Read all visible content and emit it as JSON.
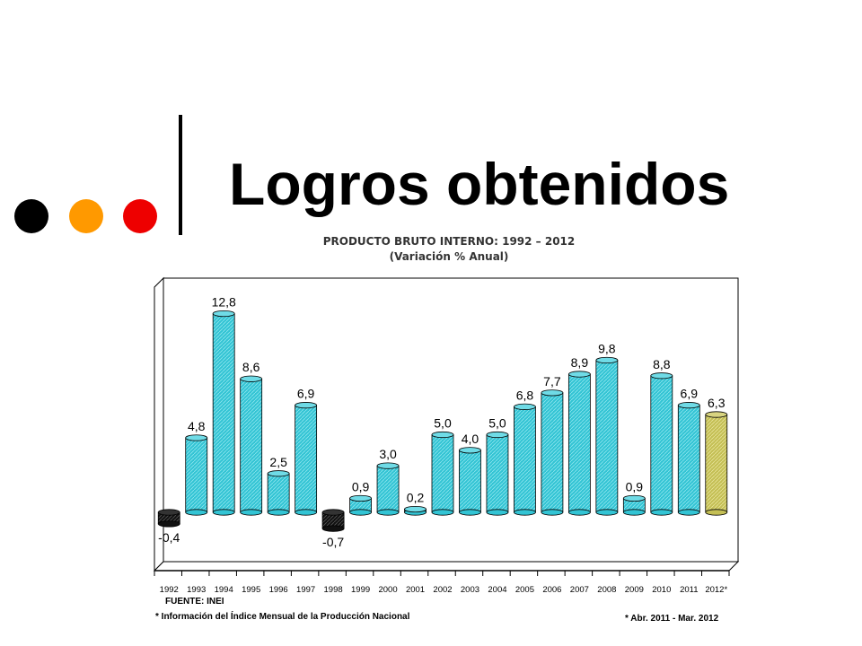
{
  "slide": {
    "title": "Logros obtenidos",
    "bullet_colors": [
      "#000000",
      "#ff9900",
      "#ee0000"
    ]
  },
  "chart_data": {
    "type": "bar",
    "title": "PRODUCTO BRUTO INTERNO: 1992 – 2012",
    "subtitle": "(Variación % Anual)",
    "categories": [
      "1992",
      "1993",
      "1994",
      "1995",
      "1996",
      "1997",
      "1998",
      "1999",
      "2000",
      "2001",
      "2002",
      "2003",
      "2004",
      "2005",
      "2006",
      "2007",
      "2008",
      "2009",
      "2010",
      "2011",
      "2012*"
    ],
    "values": [
      -0.4,
      4.8,
      12.8,
      8.6,
      2.5,
      6.9,
      -0.7,
      0.9,
      3.0,
      0.2,
      5.0,
      4.0,
      5.0,
      6.8,
      7.7,
      8.9,
      9.8,
      0.9,
      8.8,
      6.9,
      6.3
    ],
    "value_labels": [
      "-0,4",
      "4,8",
      "12,8",
      "8,6",
      "2,5",
      "6,9",
      "-0,7",
      "0,9",
      "3,0",
      "0,2",
      "5,0",
      "4,0",
      "5,0",
      "6,8",
      "7,7",
      "8,9",
      "9,8",
      "0,9",
      "8,8",
      "6,9",
      "6,3"
    ],
    "xlabel": "",
    "ylabel": "",
    "grid": false,
    "legend": "none",
    "colors": {
      "positive": "#33c4d4",
      "negative": "#111111",
      "highlight": "#c4bf55"
    }
  },
  "footnotes": {
    "source": "FUENTE: INEI",
    "info": "* Información del Índice Mensual de la Producción Nacional",
    "period": "* Abr. 2011 - Mar. 2012"
  }
}
